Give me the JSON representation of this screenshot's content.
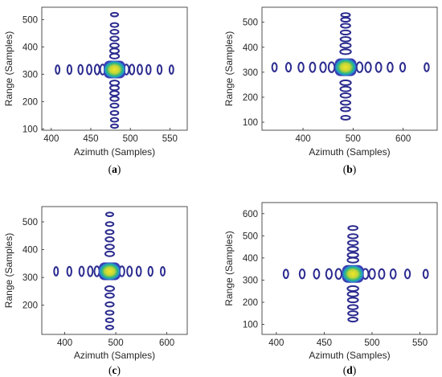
{
  "chart_data": [
    {
      "id": "a",
      "type": "contour",
      "caption": "a",
      "xlabel": "Azimuth (Samples)",
      "ylabel": "Range (Samples)",
      "xlim": [
        388,
        572
      ],
      "ylim": [
        95,
        545
      ],
      "xticks": [
        400,
        450,
        500,
        550
      ],
      "yticks": [
        100,
        200,
        300,
        400,
        500
      ],
      "center": [
        480,
        317
      ],
      "x_sidelobes": [
        408,
        423,
        437,
        448,
        458,
        465,
        495,
        502,
        512,
        523,
        537,
        552
      ],
      "y_sidelobes": [
        110,
        133,
        158,
        185,
        210,
        230,
        250,
        268,
        366,
        385,
        405,
        430,
        455,
        480,
        518
      ]
    },
    {
      "id": "b",
      "type": "contour",
      "caption": "b",
      "xlabel": "Azimuth (Samples)",
      "ylabel": "Range (Samples)",
      "xlim": [
        318,
        668
      ],
      "ylim": [
        68,
        560
      ],
      "xticks": [
        400,
        500,
        600
      ],
      "yticks": [
        100,
        200,
        300,
        400,
        500
      ],
      "center": [
        485,
        320
      ],
      "x_sidelobes": [
        343,
        371,
        396,
        419,
        440,
        457,
        513,
        530,
        551,
        574,
        599,
        647
      ],
      "y_sidelobes": [
        118,
        152,
        178,
        207,
        233,
        258,
        382,
        407,
        432,
        459,
        486,
        510,
        529
      ]
    },
    {
      "id": "c",
      "type": "contour",
      "caption": "c",
      "xlabel": "Azimuth (Samples)",
      "ylabel": "Range (Samples)",
      "xlim": [
        355,
        640
      ],
      "ylim": [
        95,
        555
      ],
      "xticks": [
        400,
        500,
        600
      ],
      "yticks": [
        200,
        300,
        400,
        500
      ],
      "center": [
        488,
        322
      ],
      "x_sidelobes": [
        383,
        409,
        433,
        450,
        463,
        512,
        527,
        545,
        568,
        592
      ],
      "y_sidelobes": [
        120,
        146,
        173,
        203,
        235,
        260,
        385,
        410,
        437,
        463,
        492,
        527
      ]
    },
    {
      "id": "d",
      "type": "contour",
      "caption": "d",
      "xlabel": "Azimuth (Samples)",
      "ylabel": "Range (Samples)",
      "xlim": [
        385,
        568
      ],
      "ylim": [
        55,
        650
      ],
      "xticks": [
        400,
        450,
        500,
        550
      ],
      "yticks": [
        100,
        200,
        300,
        400,
        500,
        600
      ],
      "center": [
        480,
        328
      ],
      "x_sidelobes": [
        410,
        427,
        442,
        455,
        465,
        493,
        500,
        510,
        522,
        537,
        556
      ],
      "y_sidelobes": [
        122,
        150,
        178,
        210,
        237,
        262,
        390,
        413,
        440,
        468,
        498,
        535
      ]
    }
  ]
}
